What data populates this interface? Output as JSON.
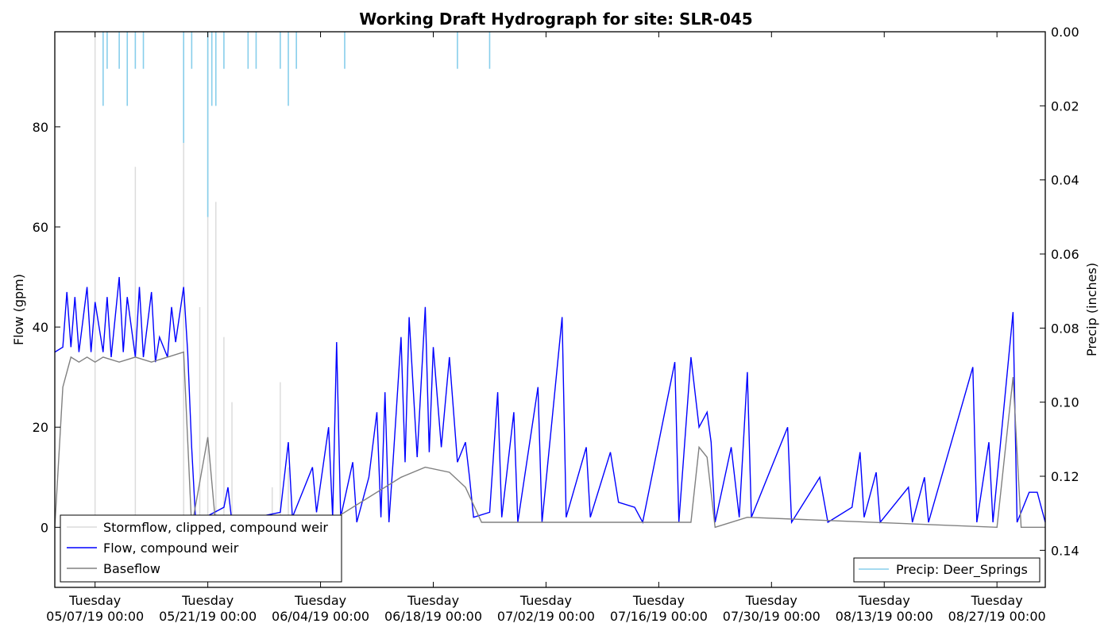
{
  "chart_data": {
    "type": "line",
    "title": "Working Draft Hydrograph for site: SLR-045",
    "ylabel": "Flow (gpm)",
    "y2label": "Precip (inches)",
    "ylim": [
      -12,
      99
    ],
    "y2lim": [
      0.15,
      0.0
    ],
    "x_range": [
      "2019-05-02",
      "2019-09-02"
    ],
    "y_ticks": [
      0,
      20,
      40,
      60,
      80
    ],
    "y2_ticks": [
      "0.00",
      "0.02",
      "0.04",
      "0.06",
      "0.08",
      "0.10",
      "0.12",
      "0.14"
    ],
    "x_ticks": [
      {
        "date": "2019-05-07",
        "line1": "Tuesday",
        "line2": "05/07/19 00:00"
      },
      {
        "date": "2019-05-21",
        "line1": "Tuesday",
        "line2": "05/21/19 00:00"
      },
      {
        "date": "2019-06-04",
        "line1": "Tuesday",
        "line2": "06/04/19 00:00"
      },
      {
        "date": "2019-06-18",
        "line1": "Tuesday",
        "line2": "06/18/19 00:00"
      },
      {
        "date": "2019-07-02",
        "line1": "Tuesday",
        "line2": "07/02/19 00:00"
      },
      {
        "date": "2019-07-16",
        "line1": "Tuesday",
        "line2": "07/16/19 00:00"
      },
      {
        "date": "2019-07-30",
        "line1": "Tuesday",
        "line2": "07/30/19 00:00"
      },
      {
        "date": "2019-08-13",
        "line1": "Tuesday",
        "line2": "08/13/19 00:00"
      },
      {
        "date": "2019-08-27",
        "line1": "Tuesday",
        "line2": "08/27/19 00:00"
      }
    ],
    "legend_left": {
      "placement": "lower-left",
      "entries": [
        {
          "label": "Stormflow, clipped, compound weir",
          "color": "#dcdcdc"
        },
        {
          "label": "Flow, compound weir",
          "color": "#0000ff"
        },
        {
          "label": "Baseflow",
          "color": "#808080"
        }
      ]
    },
    "legend_right": {
      "placement": "lower-right",
      "entries": [
        {
          "label": "Precip: Deer_Springs",
          "color": "#87ceeb"
        }
      ]
    },
    "series": [
      {
        "name": "Flow, compound weir",
        "color": "#0000ff",
        "points": [
          [
            "2019-05-02",
            35
          ],
          [
            "2019-05-03",
            36
          ],
          [
            "2019-05-03T12",
            47
          ],
          [
            "2019-05-04",
            36
          ],
          [
            "2019-05-04T12",
            46
          ],
          [
            "2019-05-05",
            35
          ],
          [
            "2019-05-06",
            48
          ],
          [
            "2019-05-06T12",
            35
          ],
          [
            "2019-05-07",
            45
          ],
          [
            "2019-05-08",
            35
          ],
          [
            "2019-05-08T12",
            46
          ],
          [
            "2019-05-09",
            34
          ],
          [
            "2019-05-10",
            50
          ],
          [
            "2019-05-10T12",
            35
          ],
          [
            "2019-05-11",
            46
          ],
          [
            "2019-05-12",
            34
          ],
          [
            "2019-05-12T12",
            48
          ],
          [
            "2019-05-13",
            34
          ],
          [
            "2019-05-14",
            47
          ],
          [
            "2019-05-14T12",
            33
          ],
          [
            "2019-05-15",
            38
          ],
          [
            "2019-05-16",
            34
          ],
          [
            "2019-05-16T12",
            44
          ],
          [
            "2019-05-17",
            37
          ],
          [
            "2019-05-18",
            48
          ],
          [
            "2019-05-18T12",
            35
          ],
          [
            "2019-05-19",
            16
          ],
          [
            "2019-05-19T12",
            1
          ],
          [
            "2019-05-23",
            4
          ],
          [
            "2019-05-23T12",
            8
          ],
          [
            "2019-05-24",
            1
          ],
          [
            "2019-05-30",
            3
          ],
          [
            "2019-05-31",
            17
          ],
          [
            "2019-05-31T12",
            2
          ],
          [
            "2019-06-02",
            8
          ],
          [
            "2019-06-03",
            12
          ],
          [
            "2019-06-03T12",
            3
          ],
          [
            "2019-06-05",
            20
          ],
          [
            "2019-06-05T12",
            2
          ],
          [
            "2019-06-06",
            37
          ],
          [
            "2019-06-06T12",
            2
          ],
          [
            "2019-06-08",
            13
          ],
          [
            "2019-06-08T12",
            1
          ],
          [
            "2019-06-10",
            10
          ],
          [
            "2019-06-11",
            23
          ],
          [
            "2019-06-11T12",
            2
          ],
          [
            "2019-06-12",
            27
          ],
          [
            "2019-06-12T12",
            1
          ],
          [
            "2019-06-13",
            13
          ],
          [
            "2019-06-14",
            38
          ],
          [
            "2019-06-14T12",
            13
          ],
          [
            "2019-06-15",
            42
          ],
          [
            "2019-06-16",
            14
          ],
          [
            "2019-06-17",
            44
          ],
          [
            "2019-06-17T12",
            15
          ],
          [
            "2019-06-18",
            36
          ],
          [
            "2019-06-19",
            16
          ],
          [
            "2019-06-20",
            34
          ],
          [
            "2019-06-21",
            13
          ],
          [
            "2019-06-22",
            17
          ],
          [
            "2019-06-22T12",
            10
          ],
          [
            "2019-06-23",
            2
          ],
          [
            "2019-06-25",
            3
          ],
          [
            "2019-06-26",
            27
          ],
          [
            "2019-06-26T12",
            2
          ],
          [
            "2019-06-28",
            23
          ],
          [
            "2019-06-28T12",
            1
          ],
          [
            "2019-07-01",
            28
          ],
          [
            "2019-07-01T12",
            1
          ],
          [
            "2019-07-04",
            42
          ],
          [
            "2019-07-04T12",
            2
          ],
          [
            "2019-07-07",
            16
          ],
          [
            "2019-07-07T12",
            2
          ],
          [
            "2019-07-10",
            15
          ],
          [
            "2019-07-11",
            5
          ],
          [
            "2019-07-13",
            4
          ],
          [
            "2019-07-14",
            1
          ],
          [
            "2019-07-18",
            33
          ],
          [
            "2019-07-18T12",
            1
          ],
          [
            "2019-07-20",
            34
          ],
          [
            "2019-07-21",
            20
          ],
          [
            "2019-07-22",
            23
          ],
          [
            "2019-07-22T12",
            17
          ],
          [
            "2019-07-23",
            1
          ],
          [
            "2019-07-25",
            16
          ],
          [
            "2019-07-26",
            2
          ],
          [
            "2019-07-27",
            31
          ],
          [
            "2019-07-27T12",
            2
          ],
          [
            "2019-08-01",
            20
          ],
          [
            "2019-08-01T12",
            1
          ],
          [
            "2019-08-05",
            10
          ],
          [
            "2019-08-06",
            1
          ],
          [
            "2019-08-09",
            4
          ],
          [
            "2019-08-10",
            15
          ],
          [
            "2019-08-10T12",
            2
          ],
          [
            "2019-08-12",
            11
          ],
          [
            "2019-08-12T12",
            1
          ],
          [
            "2019-08-16",
            8
          ],
          [
            "2019-08-16T12",
            1
          ],
          [
            "2019-08-18",
            10
          ],
          [
            "2019-08-18T12",
            1
          ],
          [
            "2019-08-24",
            32
          ],
          [
            "2019-08-24T12",
            1
          ],
          [
            "2019-08-26",
            17
          ],
          [
            "2019-08-26T12",
            1
          ],
          [
            "2019-08-29",
            43
          ],
          [
            "2019-08-29T12",
            1
          ],
          [
            "2019-08-31",
            7
          ],
          [
            "2019-09-01",
            7
          ],
          [
            "2019-09-02",
            1
          ]
        ]
      },
      {
        "name": "Baseflow",
        "color": "#808080",
        "points": [
          [
            "2019-05-02",
            0
          ],
          [
            "2019-05-03",
            28
          ],
          [
            "2019-05-04",
            34
          ],
          [
            "2019-05-05",
            33
          ],
          [
            "2019-05-06",
            34
          ],
          [
            "2019-05-07",
            33
          ],
          [
            "2019-05-08",
            34
          ],
          [
            "2019-05-10",
            33
          ],
          [
            "2019-05-12",
            34
          ],
          [
            "2019-05-14",
            33
          ],
          [
            "2019-05-16",
            34
          ],
          [
            "2019-05-18",
            35
          ],
          [
            "2019-05-19",
            0
          ],
          [
            "2019-05-21",
            18
          ],
          [
            "2019-05-22",
            0
          ],
          [
            "2019-06-04",
            0
          ],
          [
            "2019-06-14",
            10
          ],
          [
            "2019-06-17",
            12
          ],
          [
            "2019-06-20",
            11
          ],
          [
            "2019-06-22",
            8
          ],
          [
            "2019-06-24",
            1
          ],
          [
            "2019-07-20",
            1
          ],
          [
            "2019-07-21",
            16
          ],
          [
            "2019-07-22",
            14
          ],
          [
            "2019-07-23",
            0
          ],
          [
            "2019-07-27",
            2
          ],
          [
            "2019-08-27",
            0
          ],
          [
            "2019-08-29",
            30
          ],
          [
            "2019-08-30",
            0
          ],
          [
            "2019-09-02",
            0
          ]
        ]
      },
      {
        "name": "Stormflow, clipped, compound weir",
        "color": "#dcdcdc",
        "points": [
          [
            "2019-05-07",
            99
          ],
          [
            "2019-05-12",
            72
          ],
          [
            "2019-05-18",
            97
          ],
          [
            "2019-05-20",
            44
          ],
          [
            "2019-05-21",
            99
          ],
          [
            "2019-05-22",
            65
          ],
          [
            "2019-05-23",
            38
          ],
          [
            "2019-05-24",
            25
          ],
          [
            "2019-05-29",
            8
          ],
          [
            "2019-05-30",
            29
          ],
          [
            "2019-05-31",
            12
          ]
        ]
      },
      {
        "name": "Precip: Deer_Springs",
        "color": "#87ceeb",
        "points": [
          [
            "2019-05-08",
            0.02
          ],
          [
            "2019-05-08T12",
            0.01
          ],
          [
            "2019-05-10",
            0.01
          ],
          [
            "2019-05-11",
            0.02
          ],
          [
            "2019-05-12",
            0.01
          ],
          [
            "2019-05-13",
            0.01
          ],
          [
            "2019-05-18",
            0.03
          ],
          [
            "2019-05-19",
            0.01
          ],
          [
            "2019-05-21",
            0.05
          ],
          [
            "2019-05-21T12",
            0.02
          ],
          [
            "2019-05-22",
            0.02
          ],
          [
            "2019-05-23",
            0.01
          ],
          [
            "2019-05-26",
            0.01
          ],
          [
            "2019-05-27",
            0.01
          ],
          [
            "2019-05-30",
            0.01
          ],
          [
            "2019-05-31",
            0.02
          ],
          [
            "2019-06-01",
            0.01
          ],
          [
            "2019-06-07",
            0.01
          ],
          [
            "2019-06-21",
            0.01
          ],
          [
            "2019-06-25",
            0.01
          ]
        ]
      }
    ]
  }
}
